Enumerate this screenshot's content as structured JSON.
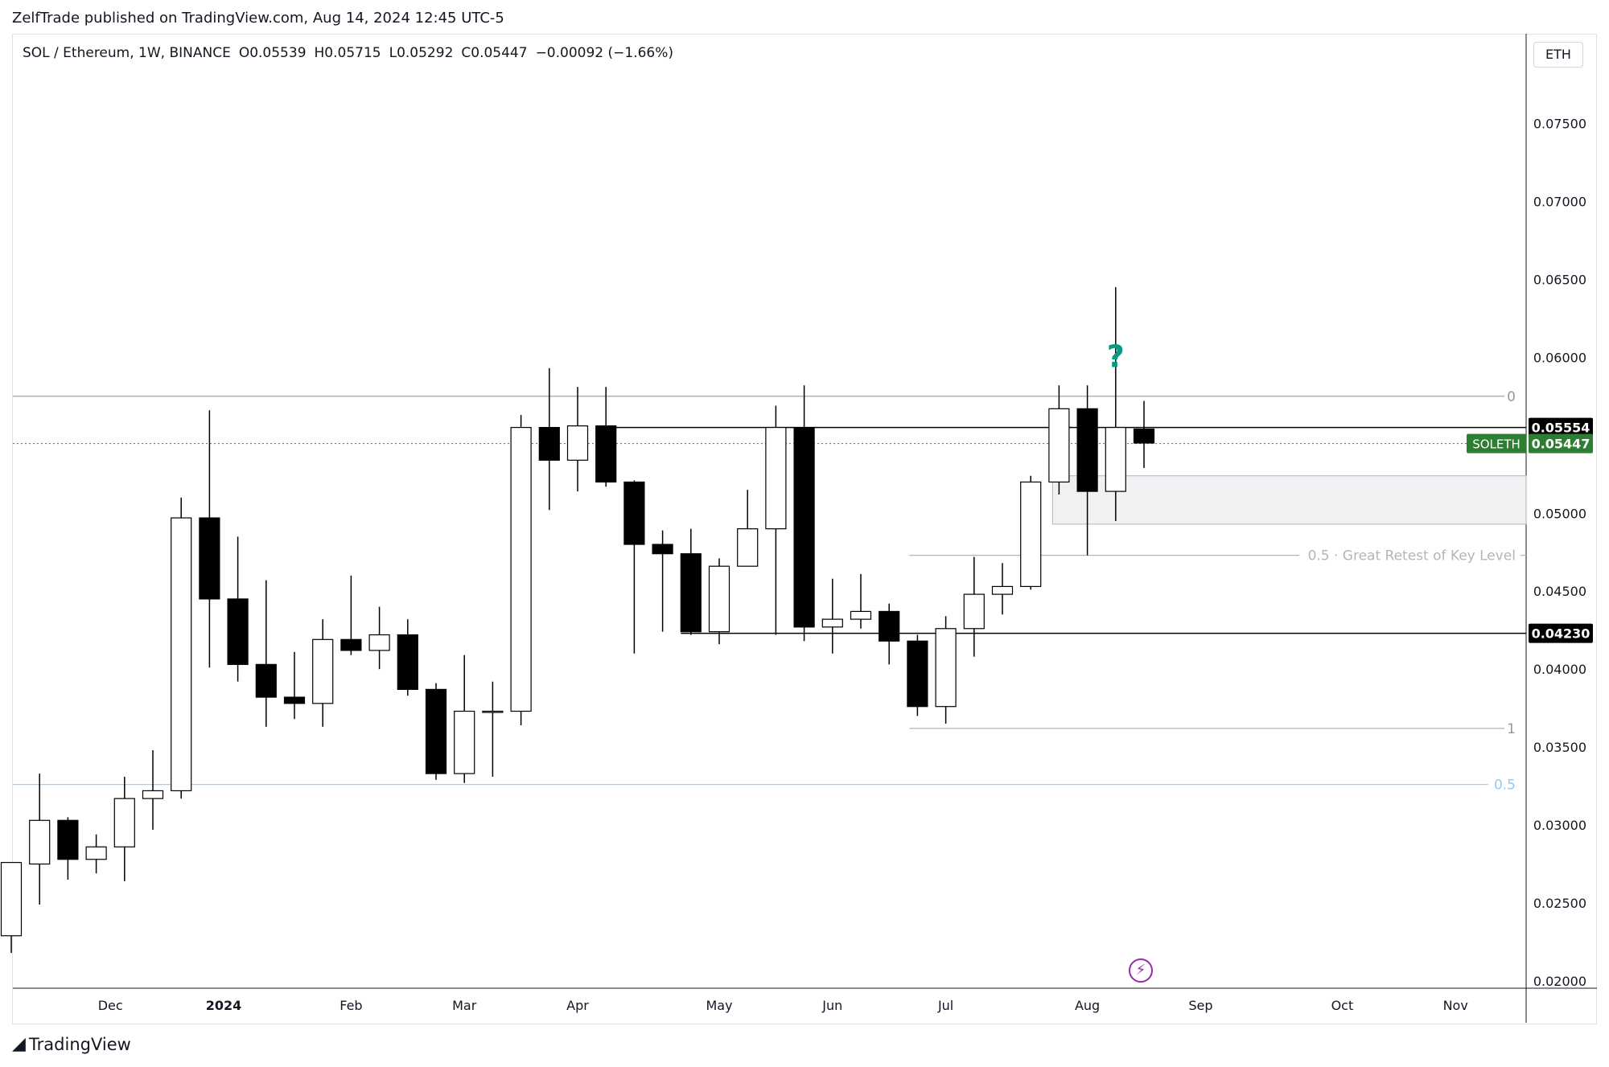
{
  "publisher": "ZelfTrade published on TradingView.com, Aug 14, 2024 12:45 UTC-5",
  "legend": {
    "symbol": "SOL / Ethereum, 1W, BINANCE",
    "open": "O0.05539",
    "high": "H0.05715",
    "low": "L0.05292",
    "close": "C0.05447",
    "change": "−0.00092 (−1.66%)"
  },
  "currency_button": "ETH",
  "footer_brand": "TradingView",
  "colors": {
    "up_fill": "#ffffff",
    "down_fill": "#000000",
    "wick": "#000000",
    "fib_gray": "#b2b5be",
    "fib_blue": "#90caf9",
    "accent_green": "#089981",
    "last_price_bg": "#2e7d32"
  },
  "chart_data": {
    "type": "candlestick",
    "ylim": [
      0.02,
      0.0775
    ],
    "y_ticks": [
      "0.07500",
      "0.07000",
      "0.06500",
      "0.06000",
      "0.05500",
      "0.05000",
      "0.04500",
      "0.04000",
      "0.03500",
      "0.03000",
      "0.02500",
      "0.02000"
    ],
    "x_ticks": [
      {
        "label": "Dec",
        "index": 3.5,
        "bold": false
      },
      {
        "label": "2024",
        "index": 7.5,
        "bold": true
      },
      {
        "label": "Feb",
        "index": 12,
        "bold": false
      },
      {
        "label": "Mar",
        "index": 16,
        "bold": false
      },
      {
        "label": "Apr",
        "index": 20,
        "bold": false
      },
      {
        "label": "May",
        "index": 25,
        "bold": false
      },
      {
        "label": "Jun",
        "index": 29,
        "bold": false
      },
      {
        "label": "Jul",
        "index": 33,
        "bold": false
      },
      {
        "label": "Aug",
        "index": 38,
        "bold": false
      },
      {
        "label": "Sep",
        "index": 42,
        "bold": false
      },
      {
        "label": "Oct",
        "index": 47,
        "bold": false
      },
      {
        "label": "Nov",
        "index": 51,
        "bold": false
      }
    ],
    "candles": [
      {
        "o": 0.0229,
        "h": 0.0276,
        "l": 0.0218,
        "c": 0.0276
      },
      {
        "o": 0.0275,
        "h": 0.0333,
        "l": 0.0249,
        "c": 0.0303
      },
      {
        "o": 0.0303,
        "h": 0.0305,
        "l": 0.0265,
        "c": 0.0278
      },
      {
        "o": 0.0278,
        "h": 0.0294,
        "l": 0.0269,
        "c": 0.0286
      },
      {
        "o": 0.0286,
        "h": 0.0331,
        "l": 0.0264,
        "c": 0.0317
      },
      {
        "o": 0.0317,
        "h": 0.0348,
        "l": 0.0297,
        "c": 0.0322
      },
      {
        "o": 0.0322,
        "h": 0.051,
        "l": 0.0317,
        "c": 0.0497
      },
      {
        "o": 0.0497,
        "h": 0.0566,
        "l": 0.0401,
        "c": 0.0445
      },
      {
        "o": 0.0445,
        "h": 0.0485,
        "l": 0.0392,
        "c": 0.0403
      },
      {
        "o": 0.0403,
        "h": 0.0457,
        "l": 0.0363,
        "c": 0.0382
      },
      {
        "o": 0.0382,
        "h": 0.0411,
        "l": 0.0368,
        "c": 0.0378
      },
      {
        "o": 0.0378,
        "h": 0.0432,
        "l": 0.0363,
        "c": 0.0419
      },
      {
        "o": 0.0419,
        "h": 0.046,
        "l": 0.0409,
        "c": 0.0412
      },
      {
        "o": 0.0412,
        "h": 0.044,
        "l": 0.04,
        "c": 0.0422
      },
      {
        "o": 0.0422,
        "h": 0.0432,
        "l": 0.0383,
        "c": 0.0387
      },
      {
        "o": 0.0387,
        "h": 0.0391,
        "l": 0.0329,
        "c": 0.0333
      },
      {
        "o": 0.0333,
        "h": 0.0409,
        "l": 0.0327,
        "c": 0.0373
      },
      {
        "o": 0.0373,
        "h": 0.0392,
        "l": 0.0331,
        "c": 0.0373
      },
      {
        "o": 0.0373,
        "h": 0.0563,
        "l": 0.0364,
        "c": 0.0555
      },
      {
        "o": 0.0555,
        "h": 0.0593,
        "l": 0.0502,
        "c": 0.0534
      },
      {
        "o": 0.0534,
        "h": 0.0581,
        "l": 0.0514,
        "c": 0.0556
      },
      {
        "o": 0.0556,
        "h": 0.0581,
        "l": 0.0517,
        "c": 0.052
      },
      {
        "o": 0.052,
        "h": 0.0521,
        "l": 0.041,
        "c": 0.048
      },
      {
        "o": 0.048,
        "h": 0.0489,
        "l": 0.0424,
        "c": 0.0474
      },
      {
        "o": 0.0474,
        "h": 0.049,
        "l": 0.0422,
        "c": 0.0424
      },
      {
        "o": 0.0424,
        "h": 0.0471,
        "l": 0.0416,
        "c": 0.0466
      },
      {
        "o": 0.0466,
        "h": 0.0515,
        "l": 0.0466,
        "c": 0.049
      },
      {
        "o": 0.049,
        "h": 0.0569,
        "l": 0.0422,
        "c": 0.0555
      },
      {
        "o": 0.0555,
        "h": 0.0582,
        "l": 0.0418,
        "c": 0.0427
      },
      {
        "o": 0.0427,
        "h": 0.0458,
        "l": 0.041,
        "c": 0.0432
      },
      {
        "o": 0.0432,
        "h": 0.0461,
        "l": 0.0426,
        "c": 0.0437
      },
      {
        "o": 0.0437,
        "h": 0.0442,
        "l": 0.0403,
        "c": 0.0418
      },
      {
        "o": 0.0418,
        "h": 0.0422,
        "l": 0.037,
        "c": 0.0376
      },
      {
        "o": 0.0376,
        "h": 0.0434,
        "l": 0.0365,
        "c": 0.0426
      },
      {
        "o": 0.0426,
        "h": 0.0472,
        "l": 0.0408,
        "c": 0.0448
      },
      {
        "o": 0.0448,
        "h": 0.0468,
        "l": 0.0435,
        "c": 0.0453
      },
      {
        "o": 0.0453,
        "h": 0.0524,
        "l": 0.0451,
        "c": 0.052
      },
      {
        "o": 0.052,
        "h": 0.0582,
        "l": 0.0512,
        "c": 0.0567
      },
      {
        "o": 0.0567,
        "h": 0.0582,
        "l": 0.0473,
        "c": 0.0514
      },
      {
        "o": 0.0514,
        "h": 0.0645,
        "l": 0.0495,
        "c": 0.0555
      },
      {
        "o": 0.0554,
        "h": 0.0572,
        "l": 0.0529,
        "c": 0.0545
      }
    ],
    "horizontal_lines": [
      {
        "price": 0.0555,
        "label": "0.05554",
        "label_color": "#000000"
      },
      {
        "price": 0.0423,
        "label": "0.04230",
        "label_color": "#000000"
      }
    ],
    "last_price": {
      "price": 0.05447,
      "symbol_label": "SOLETH",
      "label": "0.05447"
    },
    "fib_retracement": {
      "level_0": 0.0575,
      "level_1": 0.0362,
      "level_05": 0.0473,
      "label_0": "0",
      "label_1": "1",
      "label_05": "0.5 · Great Retest of Key Level"
    },
    "fib_blue": {
      "price": 0.0326,
      "label": "0.5"
    },
    "zone": {
      "top": 0.0524,
      "bottom": 0.0493,
      "from_index": 37,
      "to_index": 52
    },
    "annotation": {
      "text": "?",
      "index": 39,
      "price": 0.0601
    }
  }
}
